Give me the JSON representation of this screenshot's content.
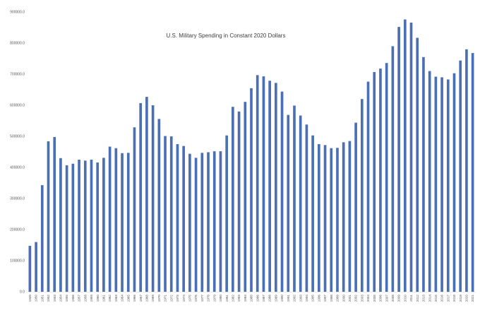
{
  "chart_data": {
    "type": "bar",
    "title": "U.S. Military Spending in Constant 2020 Dollars",
    "xlabel": "",
    "ylabel": "",
    "ylim": [
      0,
      900000
    ],
    "ytick_values": [
      0,
      100000,
      200000,
      300000,
      400000,
      500000,
      600000,
      700000,
      800000,
      900000
    ],
    "ytick_labels": [
      "0.0",
      "100000.0",
      "200000.0",
      "300000.0",
      "400000.0",
      "500000.0",
      "600000.0",
      "700000.0",
      "800000.0",
      "900000.0"
    ],
    "grid": false,
    "legend": "none",
    "bar_color": "#4a6fb5",
    "categories": [
      "1949",
      "1950",
      "1951",
      "1952",
      "1953",
      "1954",
      "1955",
      "1956",
      "1957",
      "1958",
      "1959",
      "1960",
      "1961",
      "1962",
      "1963",
      "1964",
      "1965",
      "1966",
      "1967",
      "1968",
      "1969",
      "1970",
      "1971",
      "1972",
      "1973",
      "1974",
      "1975",
      "1976",
      "1977",
      "1978",
      "1979",
      "1980",
      "1981",
      "1982",
      "1983",
      "1984",
      "1985",
      "1986",
      "1987",
      "1988",
      "1989",
      "1990",
      "1991",
      "1992",
      "1993",
      "1994",
      "1995",
      "1996",
      "1997",
      "1998",
      "1999",
      "2000",
      "2001",
      "2002",
      "2003",
      "2004",
      "2005",
      "2006",
      "2007",
      "2008",
      "2009",
      "2010",
      "2011",
      "2012",
      "2013",
      "2014",
      "2015",
      "2016",
      "2017",
      "2018",
      "2019",
      "2020",
      "2021"
    ],
    "values": [
      148000,
      160000,
      343000,
      484000,
      498000,
      430000,
      407000,
      412000,
      425000,
      422000,
      425000,
      416000,
      431000,
      467000,
      462000,
      446000,
      447000,
      529000,
      607000,
      627000,
      600000,
      556000,
      501000,
      500000,
      475000,
      469000,
      444000,
      431000,
      447000,
      449000,
      452000,
      452000,
      503000,
      595000,
      580000,
      611000,
      655000,
      697000,
      693000,
      679000,
      672000,
      644000,
      569000,
      599000,
      567000,
      538000,
      503000,
      475000,
      472000,
      462000,
      463000,
      481000,
      485000,
      544000,
      620000,
      676000,
      707000,
      718000,
      736000,
      790000,
      852000,
      876000,
      866000,
      817000,
      755000,
      710000,
      692000,
      690000,
      683000,
      703000,
      744000,
      780000,
      768000
    ]
  }
}
